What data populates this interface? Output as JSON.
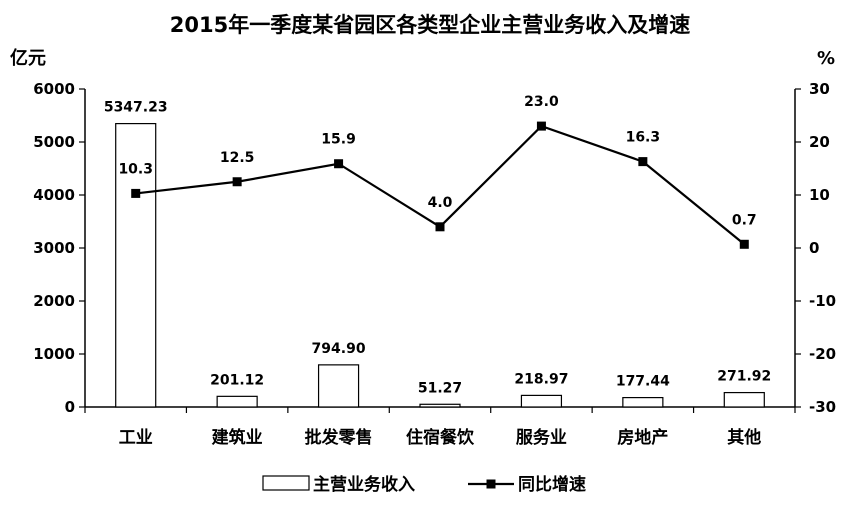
{
  "chart_data": {
    "type": "bar+line",
    "title": "2015年一季度某省园区各类型企业主营业务收入及增速",
    "y_left_unit": "亿元",
    "y_right_unit": "%",
    "y_left_lim": [
      0,
      6000
    ],
    "y_left_ticks": [
      "0",
      "1000",
      "2000",
      "3000",
      "4000",
      "5000",
      "6000"
    ],
    "y_right_lim": [
      -30,
      30
    ],
    "y_right_ticks": [
      "-30",
      "-20",
      "-10",
      "0",
      "10",
      "20",
      "30"
    ],
    "grid": false,
    "legend_position": "bottom",
    "categories": [
      "工业",
      "建筑业",
      "批发零售",
      "住宿餐饮",
      "服务业",
      "房地产",
      "其他"
    ],
    "series": [
      {
        "name": "主营业务收入",
        "type": "bar",
        "axis": "left",
        "values": [
          5347.23,
          201.12,
          794.9,
          51.27,
          218.97,
          177.44,
          271.92
        ],
        "labels": [
          "5347.23",
          "201.12",
          "794.90",
          "51.27",
          "218.97",
          "177.44",
          "271.92"
        ]
      },
      {
        "name": "同比增速",
        "type": "line",
        "axis": "right",
        "values": [
          10.3,
          12.5,
          15.9,
          4.0,
          23.0,
          16.3,
          0.7
        ],
        "labels": [
          "10.3",
          "12.5",
          "15.9",
          "4.0",
          "23.0",
          "16.3",
          "0.7"
        ]
      }
    ]
  }
}
